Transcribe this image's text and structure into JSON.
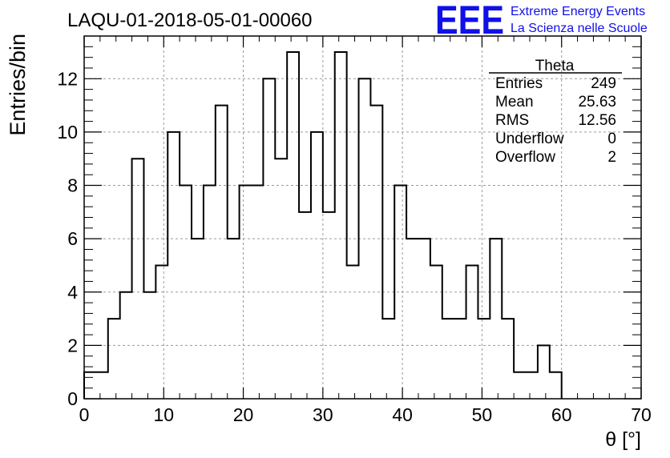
{
  "chart_data": {
    "type": "histogram",
    "title": "LAQU-01-2018-05-01-00060",
    "xlabel": "θ [°]",
    "ylabel": "Entries/bin",
    "xlim": [
      0,
      70
    ],
    "ylim": [
      0,
      13.6
    ],
    "bin_width": 1.5,
    "bin_start": 0,
    "values": [
      1,
      1,
      3,
      4,
      9,
      4,
      5,
      10,
      8,
      6,
      8,
      11,
      6,
      8,
      8,
      12,
      9,
      13,
      7,
      10,
      7,
      13,
      5,
      12,
      11,
      3,
      8,
      6,
      6,
      5,
      3,
      3,
      5,
      3,
      6,
      3,
      1,
      1,
      2,
      1
    ],
    "x_ticks": [
      "0",
      "10",
      "20",
      "30",
      "40",
      "50",
      "60",
      "70"
    ],
    "y_ticks": [
      "0",
      "2",
      "4",
      "6",
      "8",
      "10",
      "12"
    ],
    "grid": true,
    "legend_placement": "top-right",
    "line_color": "#000000"
  },
  "stats_box": {
    "title": "Theta",
    "rows": [
      {
        "label": "Entries",
        "value": "249"
      },
      {
        "label": "Mean",
        "value": "25.63"
      },
      {
        "label": "RMS",
        "value": "12.56"
      },
      {
        "label": "Underflow",
        "value": "0"
      },
      {
        "label": "Overflow",
        "value": "2"
      }
    ]
  },
  "logo": {
    "mark": "EEE",
    "line1": "Extreme Energy Events",
    "line2": "La Scienza nelle Scuole",
    "color": "#1010e8"
  }
}
